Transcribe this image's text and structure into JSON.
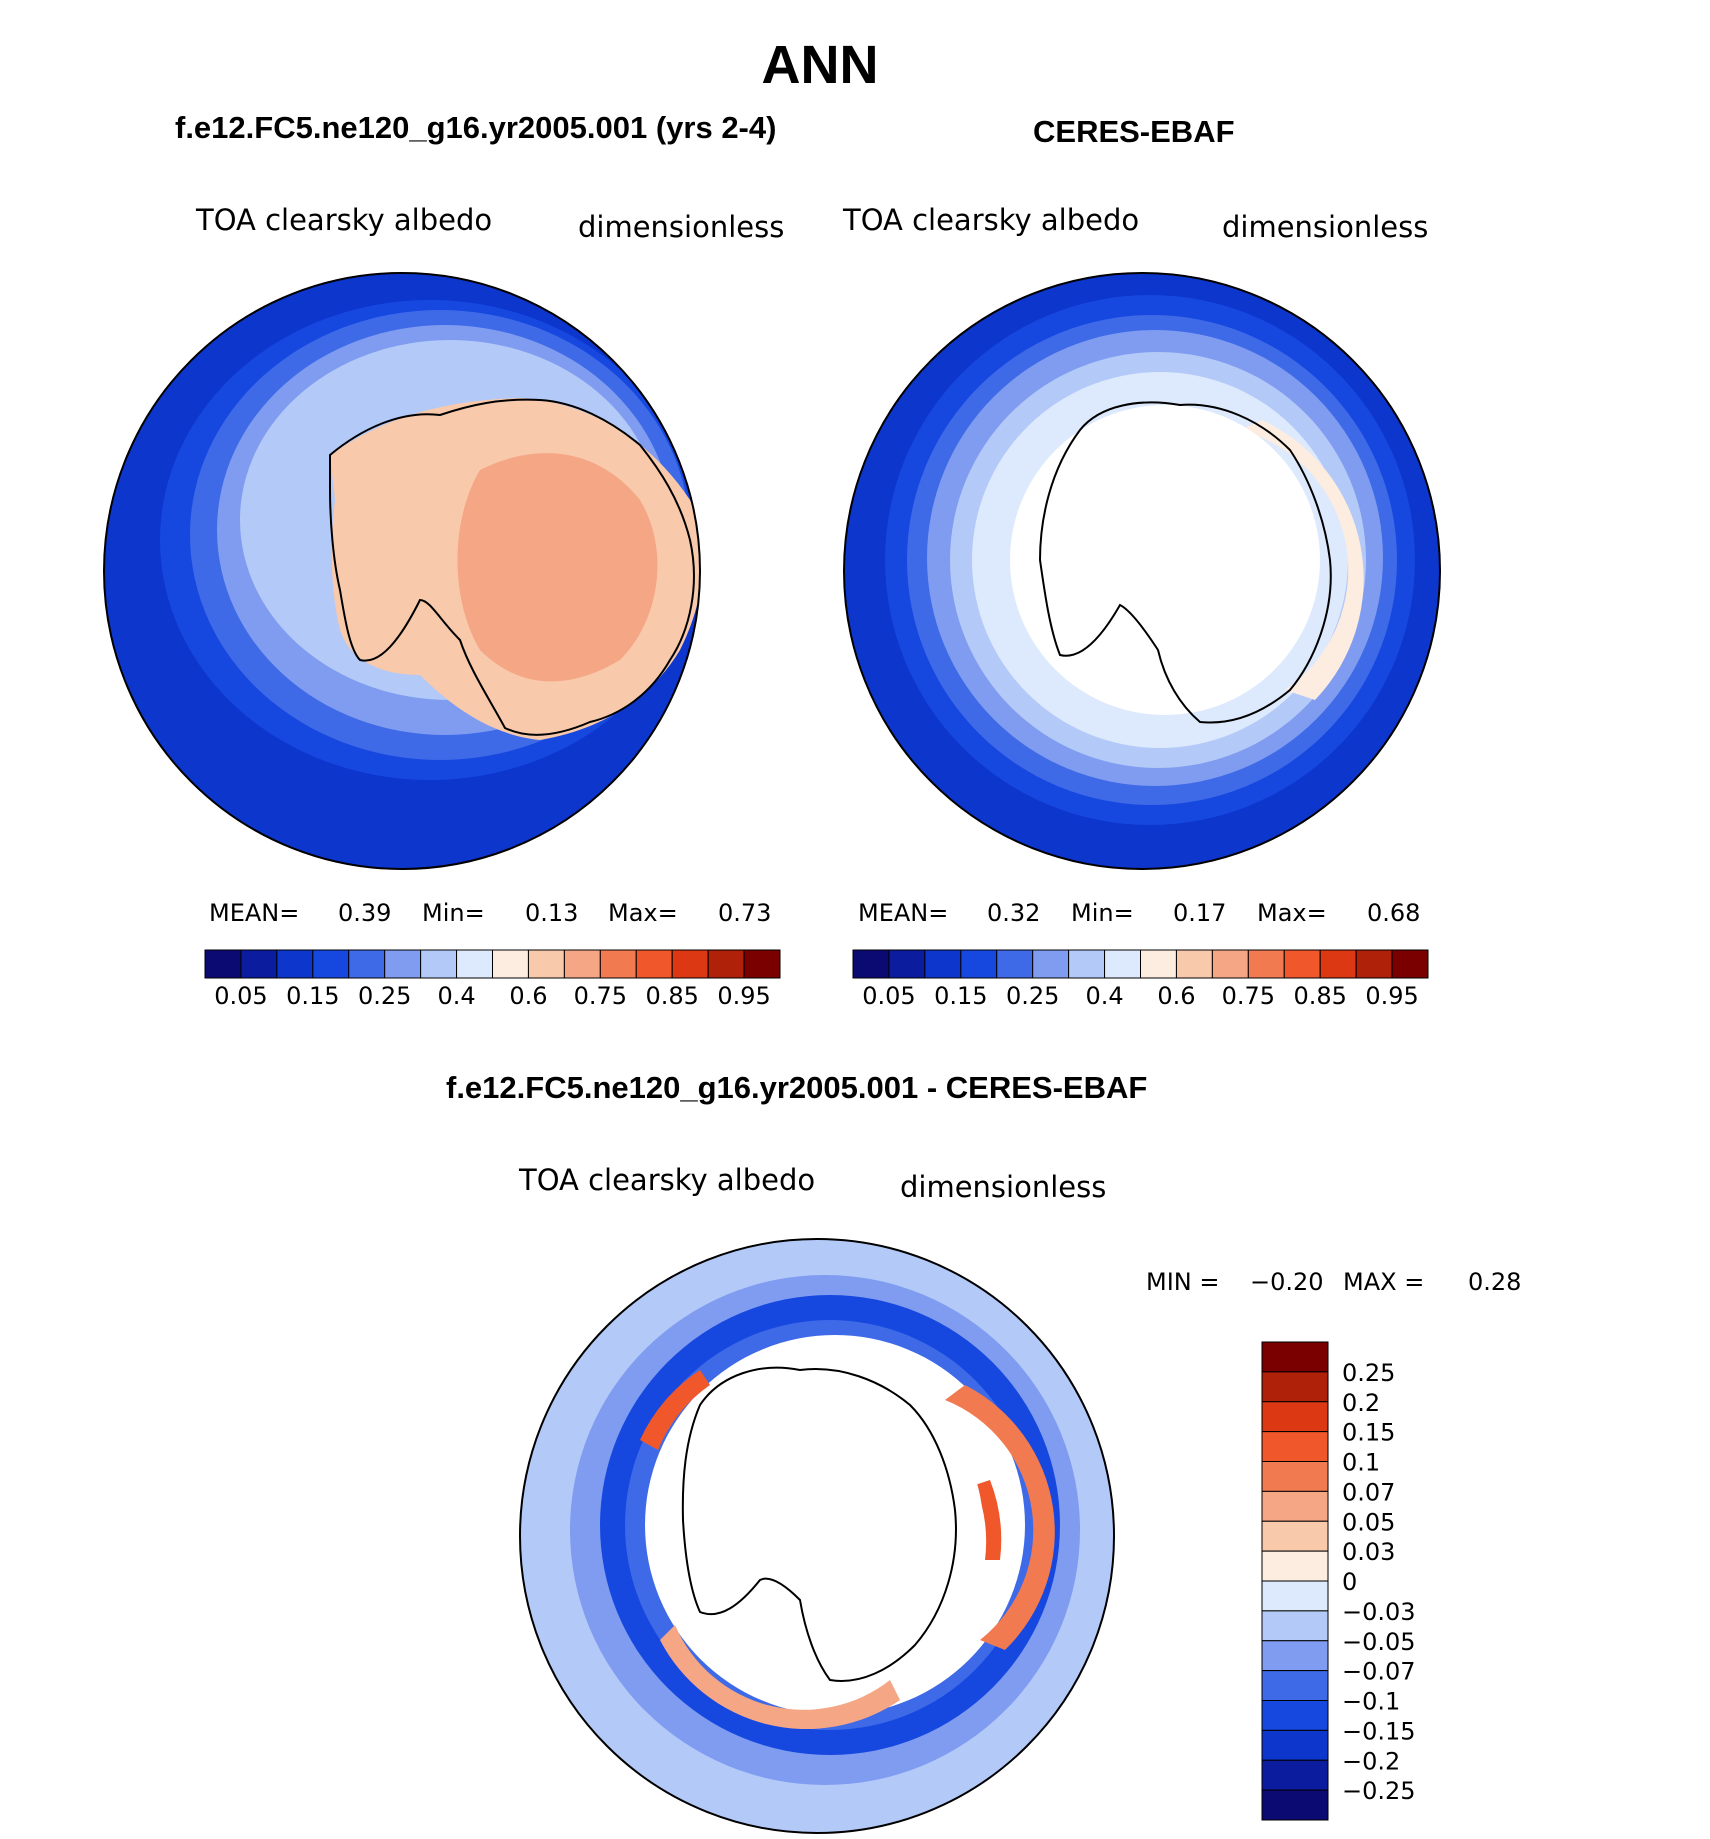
{
  "figure": {
    "title": "ANN",
    "colors": {
      "abs_levels": [
        "#0a0a72",
        "#0b1d9e",
        "#0d36cd",
        "#1648e0",
        "#3e6ae8",
        "#7f9cf0",
        "#b3c9f8",
        "#dde9fc",
        "#fdece0",
        "#f8c9ab",
        "#f5a684",
        "#f27a50",
        "#f0582c",
        "#dd3814",
        "#b0210a",
        "#7a0000"
      ],
      "diff_levels": [
        "#0a0a72",
        "#0b1d9e",
        "#0d36cd",
        "#1648e0",
        "#3e6ae8",
        "#7f9cf0",
        "#b3c9f8",
        "#dde9fc",
        "#fdece0",
        "#f8c9ab",
        "#f5a684",
        "#f27a50",
        "#f0582c",
        "#dd3814",
        "#b0210a",
        "#7a0000"
      ],
      "coastline": "#000000",
      "missing": "#ffffff"
    }
  },
  "chart_data": [
    {
      "id": "panel-model",
      "type": "heatmap",
      "projection": "south-polar-stereographic",
      "title": "f.e12.FC5.ne120_g16.yr2005.001 (yrs 2-4)",
      "left_label": "TOA clearsky albedo",
      "right_label": "dimensionless",
      "stats": {
        "mean_label": "MEAN=",
        "mean": "0.39",
        "min_label": "Min=",
        "min": "0.13",
        "max_label": "Max=",
        "max": "0.73"
      },
      "colorbar_ticks": [
        "0.05",
        "0.15",
        "0.25",
        "0.4",
        "0.6",
        "0.75",
        "0.85",
        "0.95"
      ],
      "contour_levels": [
        0.05,
        0.1,
        0.15,
        0.2,
        0.25,
        0.3,
        0.4,
        0.5,
        0.6,
        0.7,
        0.75,
        0.8,
        0.85,
        0.9,
        0.95
      ]
    },
    {
      "id": "panel-obs",
      "type": "heatmap",
      "projection": "south-polar-stereographic",
      "title": "CERES-EBAF",
      "left_label": "TOA clearsky albedo",
      "right_label": "dimensionless",
      "stats": {
        "mean_label": "MEAN=",
        "mean": "0.32",
        "min_label": "Min=",
        "min": "0.17",
        "max_label": "Max=",
        "max": "0.68"
      },
      "colorbar_ticks": [
        "0.05",
        "0.15",
        "0.25",
        "0.4",
        "0.6",
        "0.75",
        "0.85",
        "0.95"
      ],
      "contour_levels": [
        0.05,
        0.1,
        0.15,
        0.2,
        0.25,
        0.3,
        0.4,
        0.5,
        0.6,
        0.7,
        0.75,
        0.8,
        0.85,
        0.9,
        0.95
      ]
    },
    {
      "id": "panel-diff",
      "type": "heatmap",
      "projection": "south-polar-stereographic",
      "title": "f.e12.FC5.ne120_g16.yr2005.001 - CERES-EBAF",
      "left_label": "TOA clearsky albedo",
      "right_label": "dimensionless",
      "stats": {
        "min_label": "MIN =",
        "min": "−0.20",
        "max_label": "MAX =",
        "max": "0.28"
      },
      "colorbar_ticks": [
        "0.25",
        "0.2",
        "0.15",
        "0.1",
        "0.07",
        "0.05",
        "0.03",
        "0",
        "−0.03",
        "−0.05",
        "−0.07",
        "−0.1",
        "−0.15",
        "−0.2",
        "−0.25"
      ],
      "contour_levels": [
        -0.25,
        -0.2,
        -0.15,
        -0.1,
        -0.07,
        -0.05,
        -0.03,
        0,
        0.03,
        0.05,
        0.07,
        0.1,
        0.15,
        0.2,
        0.25
      ]
    }
  ]
}
